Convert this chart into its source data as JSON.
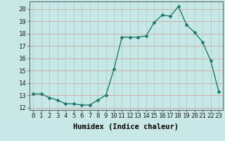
{
  "x": [
    0,
    1,
    2,
    3,
    4,
    5,
    6,
    7,
    8,
    9,
    10,
    11,
    12,
    13,
    14,
    15,
    16,
    17,
    18,
    19,
    20,
    21,
    22,
    23
  ],
  "y": [
    13.1,
    13.1,
    12.8,
    12.6,
    12.3,
    12.3,
    12.2,
    12.2,
    12.6,
    13.0,
    15.1,
    17.7,
    17.7,
    17.7,
    17.8,
    18.9,
    19.5,
    19.4,
    20.2,
    18.7,
    18.1,
    17.3,
    15.8,
    13.3
  ],
  "xlabel": "Humidex (Indice chaleur)",
  "xlim": [
    -0.5,
    23.5
  ],
  "ylim": [
    11.8,
    20.6
  ],
  "yticks": [
    12,
    13,
    14,
    15,
    16,
    17,
    18,
    19,
    20
  ],
  "xticks": [
    0,
    1,
    2,
    3,
    4,
    5,
    6,
    7,
    8,
    9,
    10,
    11,
    12,
    13,
    14,
    15,
    16,
    17,
    18,
    19,
    20,
    21,
    22,
    23
  ],
  "line_color": "#1e7b6e",
  "marker": "D",
  "marker_size": 2.0,
  "bg_color": "#c8e8e5",
  "grid_h_color": "#d4a0a0",
  "grid_v_color": "#a8d0cc",
  "xlabel_fontsize": 7.5,
  "tick_fontsize": 6.5,
  "line_width": 1.0
}
